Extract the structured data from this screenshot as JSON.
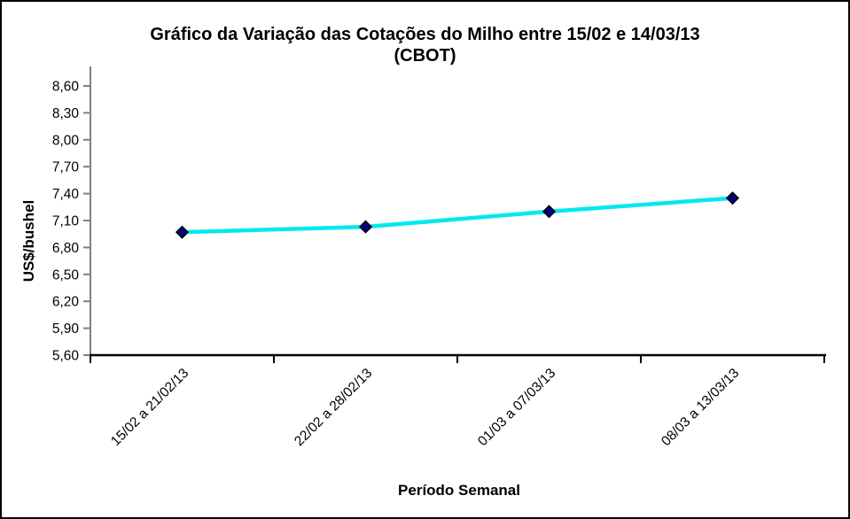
{
  "window": {
    "background_color": "#ffffff",
    "frame_border_color": "#000000"
  },
  "chart_data": {
    "type": "line",
    "title_line1": "Gráfico da Variação das Cotações do Milho entre 15/02 e 14/03/13",
    "title_line2": "(CBOT)",
    "xlabel": "Período Semanal",
    "ylabel": "US$/bushel",
    "categories": [
      "15/02 a 21/02/13",
      "22/02 a 28/02/13",
      "01/03 a 07/03/13",
      "08/03 a 13/03/13"
    ],
    "series": [
      {
        "values": [
          6.97,
          7.03,
          7.2,
          7.35
        ],
        "line_color": "#00e8f0",
        "marker": "diamond",
        "marker_fill": "#000080",
        "marker_stroke": "#000000"
      }
    ],
    "ylim": [
      5.6,
      8.6
    ],
    "ytick_step": 0.3,
    "yticks": [
      8.6,
      8.3,
      8.0,
      7.7,
      7.4,
      7.1,
      6.8,
      6.5,
      6.2,
      5.9,
      5.6
    ],
    "ytick_labels": [
      "8,60",
      "8,30",
      "8,00",
      "7,70",
      "7,40",
      "7,10",
      "6,80",
      "6,50",
      "6,20",
      "5,90",
      "5,60"
    ],
    "grid": false,
    "legend": false,
    "y_axis_color": "#808080",
    "x_axis_color": "#000000",
    "text_color": "#000000"
  }
}
